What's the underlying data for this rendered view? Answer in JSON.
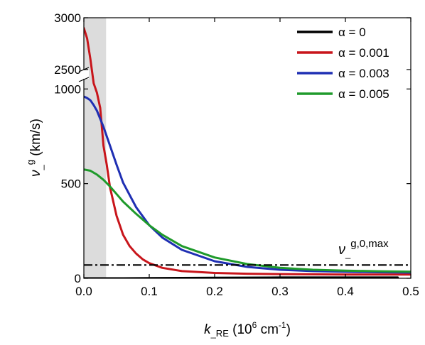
{
  "chart_data": {
    "type": "line",
    "xlabel": {
      "main": "k",
      "sub": "_RE",
      "unit_open": " (10",
      "unit_sup": "6",
      "unit_mid": " cm",
      "unit_sup2": "-1",
      "unit_close": ")"
    },
    "ylabel": {
      "main": "ν",
      "sub": "_",
      "sup": "g",
      "unit": " (km/s)"
    },
    "xlim": [
      0,
      0.5
    ],
    "x_ticks": [
      "0.0",
      "0.1",
      "0.2",
      "0.3",
      "0.4",
      "0.5"
    ],
    "y_axis": {
      "broken": true,
      "lower_range": [
        0,
        1050
      ],
      "upper_range": [
        2500,
        3000
      ],
      "lower_ticks": [
        "0",
        "500",
        "1000"
      ],
      "upper_ticks": [
        "2500",
        "3000"
      ]
    },
    "shaded_region": {
      "x": [
        0,
        0.034
      ],
      "color": "#dcdcdc"
    },
    "reference_line": {
      "label_main": "ν",
      "label_sub": "_",
      "label_sup": "g,0,max",
      "y": 70,
      "style": "dash-dot",
      "color": "#000000"
    },
    "legend_position": "top-right",
    "series": [
      {
        "name": "α = 0",
        "color": "#000000",
        "x": [
          0,
          0.03,
          0.06,
          0.1,
          0.15,
          0.2,
          0.3,
          0.4,
          0.48
        ],
        "y": [
          0,
          0,
          0,
          1,
          2,
          3,
          4,
          4,
          4
        ],
        "x_max": 0.48
      },
      {
        "name": "α = 0.001",
        "color": "#c8151b",
        "x": [
          0,
          0.005,
          0.01,
          0.015,
          0.02,
          0.025,
          0.03,
          0.035,
          0.04,
          0.05,
          0.06,
          0.07,
          0.08,
          0.09,
          0.1,
          0.12,
          0.15,
          0.2,
          0.25,
          0.3,
          0.4,
          0.5
        ],
        "y": [
          2900,
          2800,
          2600,
          1030,
          980,
          900,
          700,
          600,
          480,
          330,
          230,
          170,
          130,
          100,
          80,
          55,
          38,
          28,
          24,
          22,
          20,
          20
        ]
      },
      {
        "name": "α = 0.003",
        "color": "#1f2fb3",
        "x": [
          0,
          0.005,
          0.01,
          0.015,
          0.02,
          0.03,
          0.04,
          0.05,
          0.06,
          0.08,
          0.1,
          0.12,
          0.15,
          0.2,
          0.25,
          0.3,
          0.35,
          0.4,
          0.45,
          0.5
        ],
        "y": [
          960,
          952,
          940,
          915,
          885,
          800,
          700,
          600,
          505,
          375,
          280,
          215,
          150,
          90,
          60,
          45,
          38,
          34,
          32,
          30
        ]
      },
      {
        "name": "α = 0.005",
        "color": "#1f9a2b",
        "x": [
          0,
          0.01,
          0.02,
          0.03,
          0.04,
          0.05,
          0.06,
          0.08,
          0.1,
          0.12,
          0.15,
          0.2,
          0.25,
          0.3,
          0.35,
          0.4,
          0.45,
          0.5
        ],
        "y": [
          575,
          568,
          548,
          520,
          485,
          445,
          405,
          340,
          280,
          230,
          170,
          110,
          75,
          55,
          45,
          40,
          37,
          35
        ]
      }
    ]
  }
}
